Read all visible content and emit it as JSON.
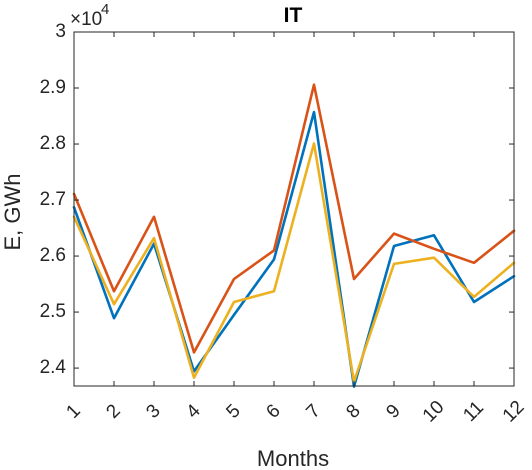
{
  "chart_data": {
    "type": "line",
    "title": "IT",
    "xlabel": "Months",
    "ylabel": "E, GWh",
    "y_multiplier": {
      "base": "×10",
      "exponent": "4"
    },
    "x": [
      1,
      2,
      3,
      4,
      5,
      6,
      7,
      8,
      9,
      10,
      11,
      12
    ],
    "x_tick_labels": [
      "1",
      "2",
      "3",
      "4",
      "5",
      "6",
      "7",
      "8",
      "9",
      "10",
      "11",
      "12"
    ],
    "xlim": [
      1,
      12
    ],
    "ylim": [
      23680,
      30000
    ],
    "y_ticks": [
      24000,
      25000,
      26000,
      27000,
      28000,
      29000,
      30000
    ],
    "y_tick_labels": [
      "2.4",
      "2.5",
      "2.6",
      "2.7",
      "2.8",
      "2.9",
      "3"
    ],
    "grid": false,
    "series": [
      {
        "color": "#0072BD",
        "values": [
          26870,
          24890,
          26220,
          23940,
          24950,
          25940,
          28570,
          23670,
          26180,
          26370,
          25180,
          25640
        ]
      },
      {
        "color": "#D95319",
        "values": [
          27110,
          25370,
          26700,
          24280,
          25590,
          26100,
          29060,
          25590,
          26400,
          26130,
          25880,
          26450
        ]
      },
      {
        "color": "#EDB120",
        "values": [
          26700,
          25140,
          26320,
          23830,
          25180,
          25370,
          28010,
          23760,
          25860,
          25970,
          25270,
          25880
        ]
      }
    ]
  }
}
